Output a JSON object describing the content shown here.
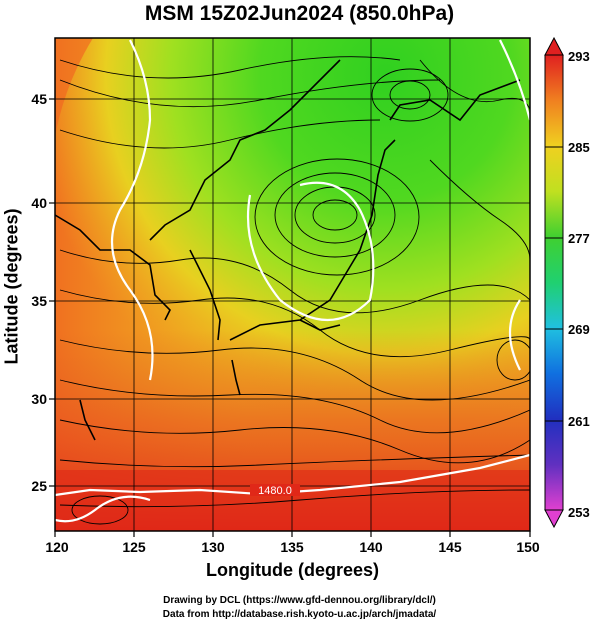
{
  "title": "MSM 15Z02Jun2024 (850.0hPa)",
  "map_data": {
    "type": "heatmap-streamlines",
    "xlabel": "Longitude (degrees)",
    "ylabel": "Latitude  (degrees)",
    "x_ticks": [
      "120",
      "125",
      "130",
      "135",
      "140",
      "145",
      "150"
    ],
    "y_ticks": [
      "25",
      "30",
      "35",
      "40",
      "45"
    ],
    "xlim": [
      120,
      150
    ],
    "ylim": [
      22.4,
      47.6
    ],
    "colorbar": {
      "ticks": [
        "293",
        "285",
        "277",
        "269",
        "261",
        "253"
      ],
      "range": [
        253,
        293
      ],
      "colors": [
        "#e040d0",
        "#4040c0",
        "#1070e0",
        "#20c0e0",
        "#20d070",
        "#70e020",
        "#c0e020",
        "#f0d020",
        "#f08020",
        "#e02020"
      ]
    },
    "contour_label": "1480.0",
    "colors": {
      "warm": "#e83a20",
      "mid": "#e8c020",
      "cool": "#40d020",
      "coast": "#000000",
      "contour": "#ffffff"
    }
  },
  "credits": {
    "line1": "Drawing by DCL (https://www.gfd-dennou.org/library/dcl/)",
    "line2": "Data from http://database.rish.kyoto-u.ac.jp/arch/jmadata/"
  }
}
